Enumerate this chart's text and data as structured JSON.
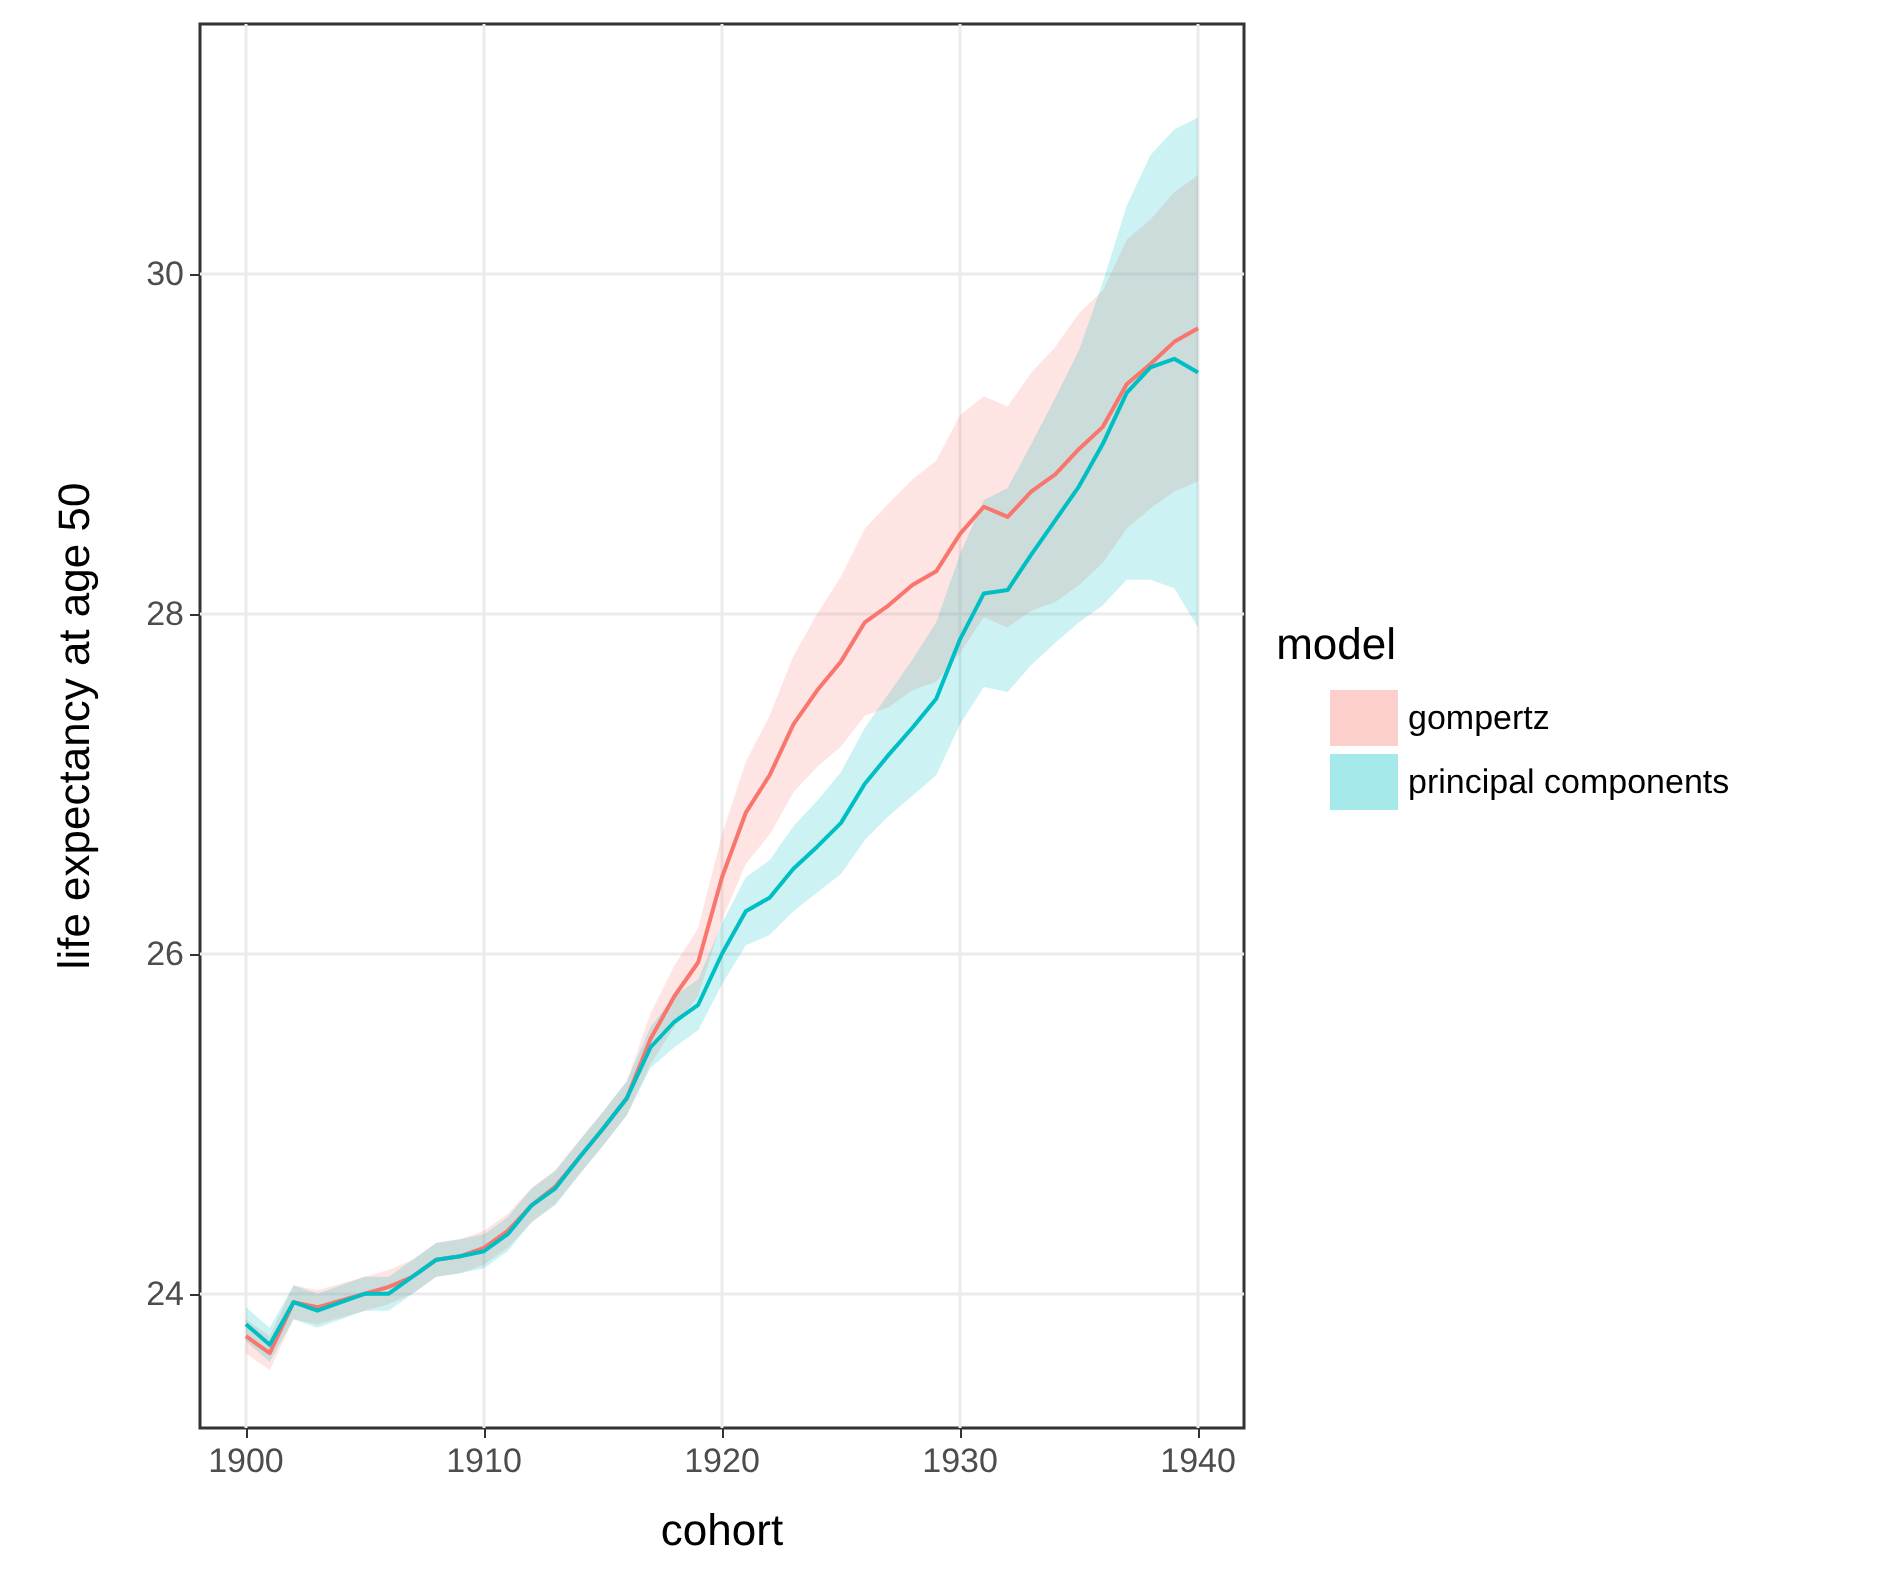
{
  "chart_data": {
    "type": "line",
    "xlabel": "cohort",
    "ylabel": "life expectancy at age 50",
    "legend_title": "model",
    "legend": "right",
    "grid": true,
    "marker": "none",
    "line_style": "solid",
    "x": [
      1900,
      1901,
      1902,
      1903,
      1904,
      1905,
      1906,
      1907,
      1908,
      1909,
      1910,
      1911,
      1912,
      1913,
      1914,
      1915,
      1916,
      1917,
      1918,
      1919,
      1920,
      1921,
      1922,
      1923,
      1924,
      1925,
      1926,
      1927,
      1928,
      1929,
      1930,
      1931,
      1932,
      1933,
      1934,
      1935,
      1936,
      1937,
      1938,
      1939,
      1940
    ],
    "xlim": [
      1898.07,
      1941.93
    ],
    "xticks": [
      1900,
      1910,
      1920,
      1930,
      1940
    ],
    "ylim": [
      23.21,
      31.47
    ],
    "yticks": [
      24,
      26,
      28,
      30
    ],
    "series": [
      {
        "name": "gompertz",
        "color": "#f8766d",
        "values": [
          23.75,
          23.65,
          23.95,
          23.92,
          23.96,
          24.0,
          24.04,
          24.1,
          24.2,
          24.22,
          24.27,
          24.37,
          24.52,
          24.63,
          24.8,
          24.97,
          25.15,
          25.5,
          25.75,
          25.95,
          26.45,
          26.83,
          27.05,
          27.35,
          27.55,
          27.72,
          27.95,
          28.05,
          28.17,
          28.25,
          28.47,
          28.63,
          28.57,
          28.72,
          28.82,
          28.97,
          29.1,
          29.35,
          29.47,
          29.6,
          29.68
        ],
        "upper": [
          23.85,
          23.75,
          24.05,
          24.02,
          24.06,
          24.1,
          24.14,
          24.2,
          24.3,
          24.32,
          24.37,
          24.47,
          24.62,
          24.73,
          24.9,
          25.07,
          25.25,
          25.65,
          25.93,
          26.15,
          26.7,
          27.13,
          27.4,
          27.75,
          28.0,
          28.22,
          28.5,
          28.65,
          28.79,
          28.9,
          29.17,
          29.28,
          29.22,
          29.42,
          29.57,
          29.77,
          29.9,
          30.2,
          30.32,
          30.48,
          30.58
        ],
        "lower": [
          23.65,
          23.55,
          23.85,
          23.82,
          23.86,
          23.9,
          23.94,
          24.0,
          24.1,
          24.12,
          24.17,
          24.27,
          24.42,
          24.53,
          24.7,
          24.87,
          25.05,
          25.35,
          25.57,
          25.75,
          26.2,
          26.53,
          26.7,
          26.95,
          27.1,
          27.22,
          27.4,
          27.45,
          27.55,
          27.6,
          27.77,
          27.98,
          27.92,
          28.02,
          28.07,
          28.17,
          28.3,
          28.5,
          28.62,
          28.72,
          28.78
        ]
      },
      {
        "name": "principal components",
        "color": "#00bfc4",
        "values": [
          23.82,
          23.7,
          23.95,
          23.9,
          23.95,
          24.0,
          24.0,
          24.1,
          24.2,
          24.22,
          24.25,
          24.35,
          24.52,
          24.62,
          24.8,
          24.97,
          25.15,
          25.45,
          25.6,
          25.7,
          26.0,
          26.25,
          26.33,
          26.5,
          26.63,
          26.77,
          27.0,
          27.17,
          27.33,
          27.5,
          27.85,
          28.12,
          28.14,
          28.35,
          28.55,
          28.75,
          29.0,
          29.3,
          29.45,
          29.5,
          29.42
        ],
        "upper": [
          23.92,
          23.8,
          24.05,
          24.0,
          24.05,
          24.1,
          24.1,
          24.2,
          24.3,
          24.32,
          24.35,
          24.45,
          24.62,
          24.72,
          24.9,
          25.07,
          25.25,
          25.57,
          25.75,
          25.85,
          26.18,
          26.45,
          26.55,
          26.75,
          26.9,
          27.07,
          27.33,
          27.53,
          27.73,
          27.95,
          28.35,
          28.67,
          28.74,
          29.0,
          29.27,
          29.55,
          29.95,
          30.4,
          30.7,
          30.85,
          30.92
        ],
        "lower": [
          23.72,
          23.6,
          23.85,
          23.8,
          23.85,
          23.9,
          23.9,
          24.0,
          24.1,
          24.12,
          24.15,
          24.25,
          24.42,
          24.52,
          24.7,
          24.87,
          25.05,
          25.33,
          25.45,
          25.55,
          25.82,
          26.05,
          26.11,
          26.25,
          26.36,
          26.47,
          26.67,
          26.81,
          26.93,
          27.05,
          27.35,
          27.57,
          27.54,
          27.7,
          27.83,
          27.95,
          28.05,
          28.2,
          28.2,
          28.15,
          27.92
        ]
      }
    ]
  }
}
